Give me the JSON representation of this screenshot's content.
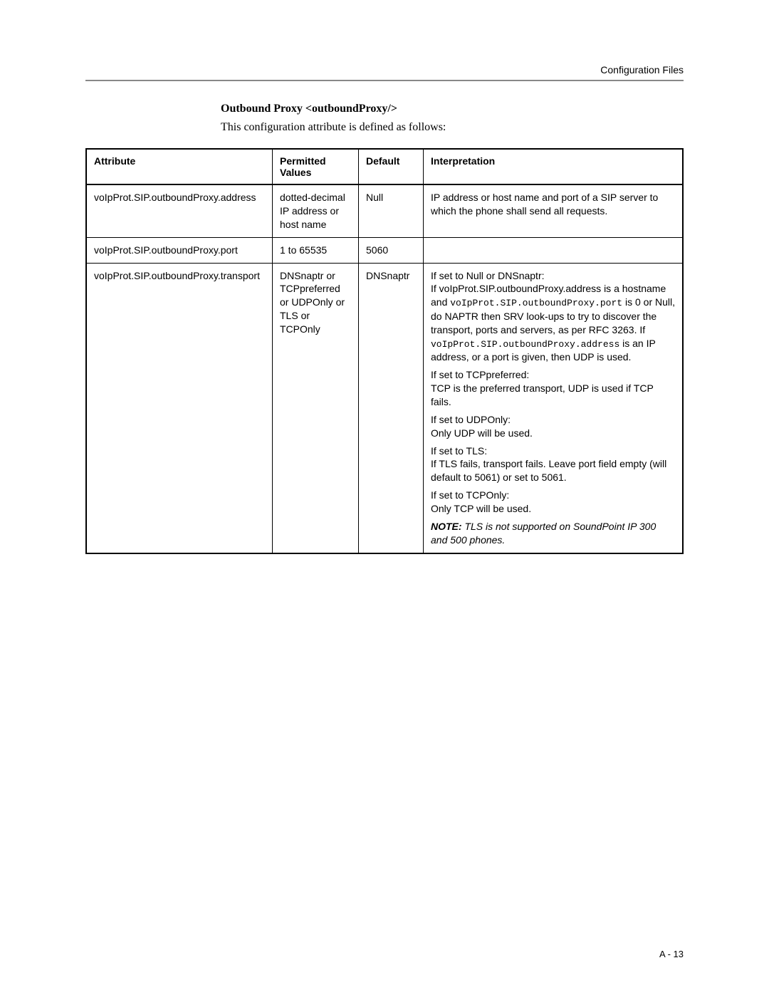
{
  "header": {
    "breadcrumb": "Configuration Files"
  },
  "section": {
    "title": "Outbound Proxy <outboundProxy/>",
    "subtitle": "This configuration attribute is defined as follows:"
  },
  "table": {
    "headers": {
      "attribute": "Attribute",
      "permitted_values": "Permitted Values",
      "default": "Default",
      "interpretation": "Interpretation"
    },
    "rows": [
      {
        "attribute": "voIpProt.SIP.outboundProxy.address",
        "values": "dotted-decimal IP address or host name",
        "default": "Null",
        "interp_paras": [
          {
            "parts": [
              {
                "t": "IP address or host name and port of a SIP server to which the phone shall send all requests."
              }
            ]
          }
        ]
      },
      {
        "attribute": "voIpProt.SIP.outboundProxy.port",
        "values": "1 to 65535",
        "default": "5060",
        "interp_paras": []
      },
      {
        "attribute": "voIpProt.SIP.outboundProxy.transport",
        "values": "DNSnaptr or TCPpreferred or UDPOnly or TLS or TCPOnly",
        "default": "DNSnaptr",
        "interp_paras": [
          {
            "parts": [
              {
                "t": "If set to Null or DNSnaptr:"
              },
              {
                "br": true
              },
              {
                "t": "If voIpProt.SIP.outboundProxy.address is a hostname and "
              },
              {
                "t": "voIpProt.SIP.outboundProxy.port",
                "mono": true
              },
              {
                "t": " is 0 or Null, do NAPTR then SRV look-ups to try to discover the transport, ports and servers, as per RFC 3263. If "
              },
              {
                "t": "voIpProt.SIP.outboundProxy.address",
                "mono": true
              },
              {
                "t": " is an IP address, or a port is given, then UDP is used."
              }
            ]
          },
          {
            "parts": [
              {
                "t": "If set to TCPpreferred:"
              },
              {
                "br": true
              },
              {
                "t": "TCP is the preferred transport, UDP is used if TCP fails."
              }
            ]
          },
          {
            "parts": [
              {
                "t": "If set to UDPOnly:"
              },
              {
                "br": true
              },
              {
                "t": "Only UDP will be used."
              }
            ]
          },
          {
            "parts": [
              {
                "t": "If set to TLS:"
              },
              {
                "br": true
              },
              {
                "t": "If TLS fails, transport fails. Leave port field empty (will default to 5061) or set to 5061."
              }
            ]
          },
          {
            "parts": [
              {
                "t": "If set to TCPOnly:"
              },
              {
                "br": true
              },
              {
                "t": "Only TCP will be used."
              }
            ]
          },
          {
            "parts": [
              {
                "t": "NOTE:",
                "note_label": true
              },
              {
                "t": " TLS is not supported on SoundPoint IP 300 and 500 phones.",
                "note_text": true
              }
            ]
          }
        ]
      }
    ]
  },
  "footer": {
    "page_number": "A - 13"
  }
}
